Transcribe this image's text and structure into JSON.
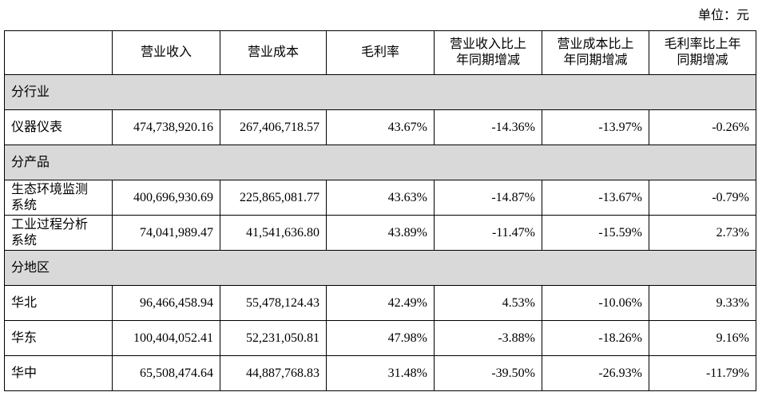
{
  "unit": "单位：元",
  "table": {
    "header": [
      "",
      "营业收入",
      "营业成本",
      "毛利率",
      "营业收入比上年同期增减",
      "营业成本比上年同期增减",
      "毛利率比上年同期增减"
    ],
    "sections": [
      {
        "title": "分行业",
        "rows": [
          [
            "仪器仪表",
            "474,738,920.16",
            "267,406,718.57",
            "43.67%",
            "-14.36%",
            "-13.97%",
            "-0.26%"
          ]
        ]
      },
      {
        "title": "分产品",
        "rows": [
          [
            "生态环境监测系统",
            "400,696,930.69",
            "225,865,081.77",
            "43.63%",
            "-14.87%",
            "-13.67%",
            "-0.79%"
          ],
          [
            "工业过程分析系统",
            "74,041,989.47",
            "41,541,636.80",
            "43.89%",
            "-11.47%",
            "-15.59%",
            "2.73%"
          ]
        ]
      },
      {
        "title": "分地区",
        "rows": [
          [
            "华北",
            "96,466,458.94",
            "55,478,124.43",
            "42.49%",
            "4.53%",
            "-10.06%",
            "9.33%"
          ],
          [
            "华东",
            "100,404,052.41",
            "52,231,050.81",
            "47.98%",
            "-3.88%",
            "-18.26%",
            "9.16%"
          ],
          [
            "华中",
            "65,508,474.64",
            "44,887,768.83",
            "31.48%",
            "-39.50%",
            "-26.93%",
            "-11.79%"
          ]
        ]
      }
    ]
  }
}
